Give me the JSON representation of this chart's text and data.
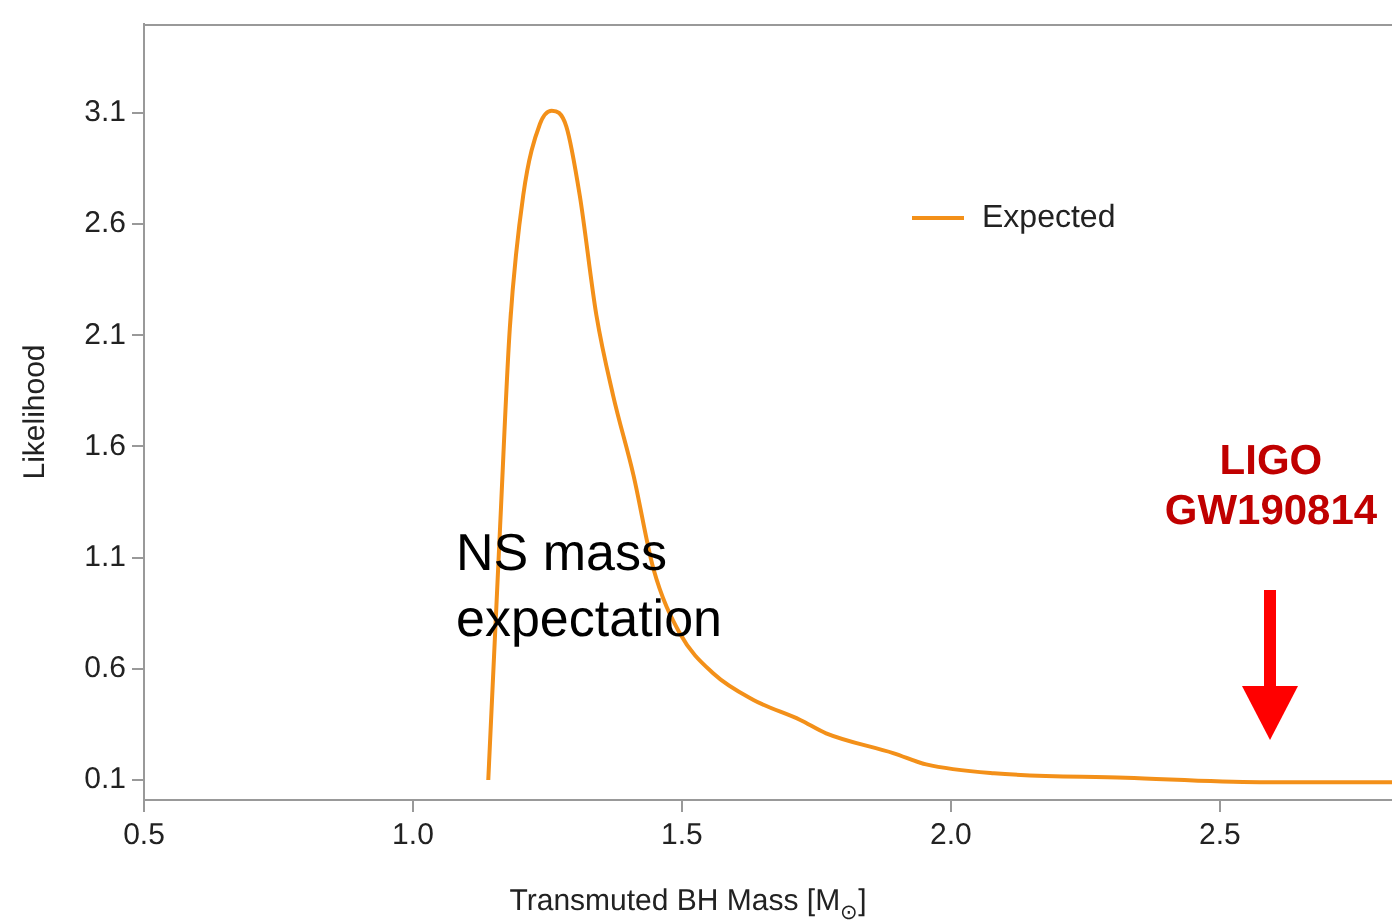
{
  "chart_data": {
    "type": "line",
    "xlabel": "Transmuted BH Mass [M$_{⊙}$]",
    "ylabel": "Likelihood",
    "x": [
      1.14,
      1.162,
      1.18,
      1.205,
      1.236,
      1.258,
      1.285,
      1.31,
      1.341,
      1.372,
      1.41,
      1.447,
      1.496,
      1.558,
      1.633,
      1.72,
      1.768,
      1.894,
      1.954,
      2.08,
      2.325,
      2.574,
      2.82
    ],
    "series": [
      {
        "name": "Expected",
        "color": "#f39019",
        "values": [
          0.1,
          1.24,
          2.13,
          2.73,
          3.05,
          3.11,
          3.04,
          2.73,
          2.19,
          1.83,
          1.47,
          1.05,
          0.76,
          0.58,
          0.46,
          0.37,
          0.31,
          0.22,
          0.17,
          0.13,
          0.11,
          0.09,
          0.09
        ]
      }
    ],
    "xlim": [
      0.5,
      2.82
    ],
    "ylim": [
      0.01,
      3.5
    ],
    "xticks": [
      0.5,
      {
        "value": 1,
        "label": "1.0"
      },
      1.5,
      {
        "value": 2,
        "label": "2.0"
      },
      2.5
    ],
    "yticks": [
      0.1,
      0.6,
      1.1,
      1.6,
      2.1,
      2.6,
      3.1
    ],
    "grid": false,
    "legend": "top right",
    "marker": "none",
    "line_style": "solid",
    "annotations": [
      "NS mass\nexpectation",
      "LIGO\nGW190814"
    ]
  }
}
